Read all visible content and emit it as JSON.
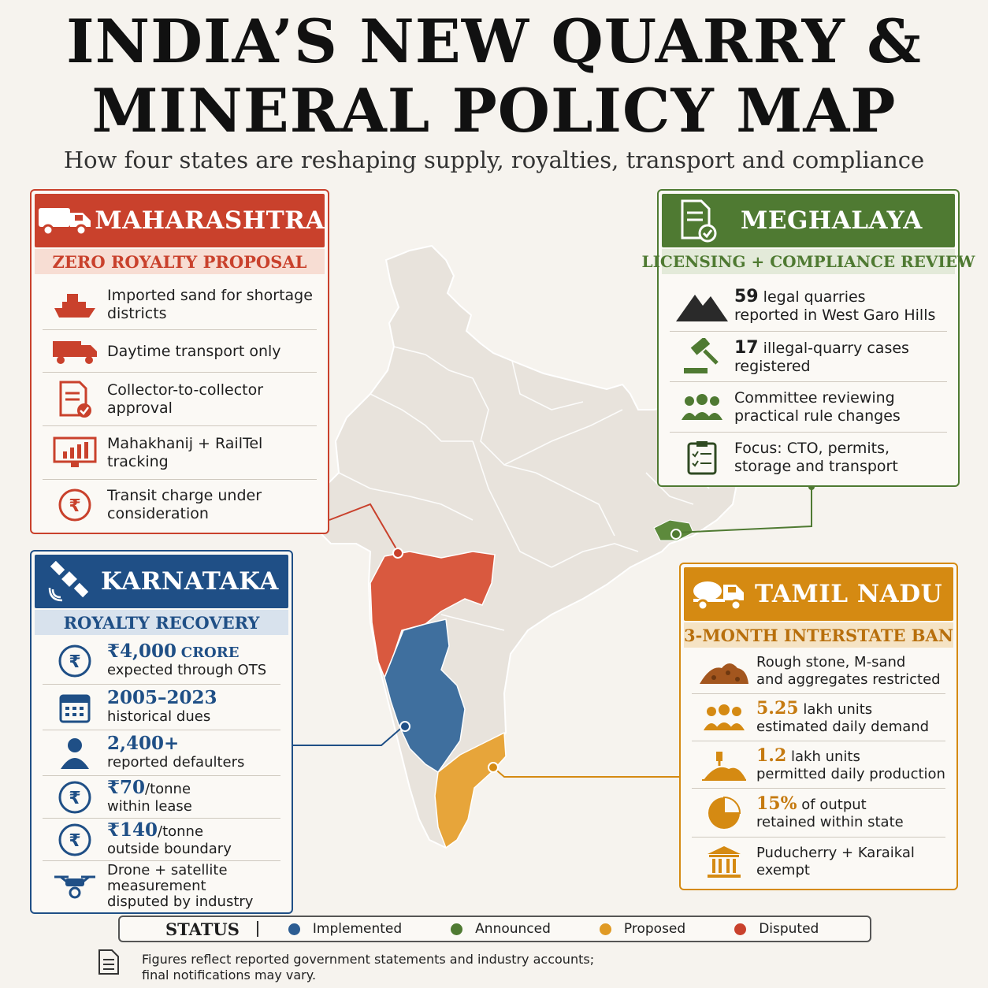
{
  "title": {
    "line1": "INDIA’S NEW QUARRY &",
    "line2": "MINERAL POLICY MAP"
  },
  "subtitle": "How four states are reshaping supply, royalties, transport and compliance",
  "colors": {
    "maharashtra": "#c9412c",
    "karnataka": "#1f4f86",
    "meghalaya": "#4f7a32",
    "tamil_nadu": "#d58a12",
    "implemented": "#2c5d92",
    "announced": "#4f7a32",
    "proposed": "#e09a24",
    "disputed": "#c9412c"
  },
  "maharashtra": {
    "name": "MAHARASHTRA",
    "subtitle": "ZERO ROYALTY PROPOSAL",
    "items": [
      {
        "icon": "ship-icon",
        "text": "Imported sand for shortage districts"
      },
      {
        "icon": "truck-icon",
        "text": "Daytime transport only"
      },
      {
        "icon": "document-check-icon",
        "text": "Collector-to-collector approval"
      },
      {
        "icon": "monitor-chart-icon",
        "text": "Mahakhanij + RailTel tracking"
      },
      {
        "icon": "rupee-icon",
        "text": "Transit charge under consideration"
      }
    ]
  },
  "meghalaya": {
    "name": "MEGHALAYA",
    "subtitle": "LICENSING + COMPLIANCE REVIEW",
    "items": [
      {
        "icon": "mountain-icon",
        "value": "59",
        "text": "legal quarries",
        "text2": "reported in West Garo Hills"
      },
      {
        "icon": "gavel-icon",
        "value": "17",
        "text": "illegal-quarry cases",
        "text2": "registered"
      },
      {
        "icon": "people-icon",
        "value": "",
        "text": "Committee reviewing",
        "text2": "practical rule changes"
      },
      {
        "icon": "clipboard-icon",
        "value": "",
        "text": "Focus: CTO, permits,",
        "text2": "storage and transport"
      }
    ]
  },
  "karnataka": {
    "name": "KARNATAKA",
    "subtitle": "ROYALTY RECOVERY",
    "items": [
      {
        "icon": "rupee-icon",
        "value": "₹4,000",
        "unit": "CRORE",
        "text": "expected through OTS"
      },
      {
        "icon": "calendar-icon",
        "value": "2005–2023",
        "unit": "",
        "text": "historical dues"
      },
      {
        "icon": "person-icon",
        "value": "2,400+",
        "unit": "",
        "text": "reported defaulters"
      },
      {
        "icon": "rupee-icon",
        "value": "₹70",
        "unit": "/tonne",
        "text": "within lease"
      },
      {
        "icon": "rupee-icon",
        "value": "₹140",
        "unit": "/tonne",
        "text": "outside boundary"
      },
      {
        "icon": "drone-icon",
        "value": "",
        "unit": "",
        "text": "Drone + satellite measurement disputed by industry"
      }
    ]
  },
  "tamil_nadu": {
    "name": "TAMIL NADU",
    "subtitle": "3-MONTH INTERSTATE BAN",
    "items": [
      {
        "icon": "stone-pile-icon",
        "value": "",
        "text": "Rough stone, M-sand",
        "text2": "and aggregates restricted"
      },
      {
        "icon": "people-icon",
        "value": "5.25",
        "text": "lakh units",
        "text2": "estimated daily demand"
      },
      {
        "icon": "sand-production-icon",
        "value": "1.2",
        "text": "lakh units",
        "text2": "permitted daily production"
      },
      {
        "icon": "pie-icon",
        "value": "15%",
        "text": "of output",
        "text2": "retained within state"
      },
      {
        "icon": "building-icon",
        "value": "",
        "text": "Puducherry + Karaikal",
        "text2": "exempt"
      }
    ]
  },
  "legend": {
    "title": "STATUS",
    "items": [
      "Implemented",
      "Announced",
      "Proposed",
      "Disputed"
    ]
  },
  "footnote": {
    "line1": "Figures reflect reported government statements and industry accounts;",
    "line2": "final notifications may vary."
  }
}
